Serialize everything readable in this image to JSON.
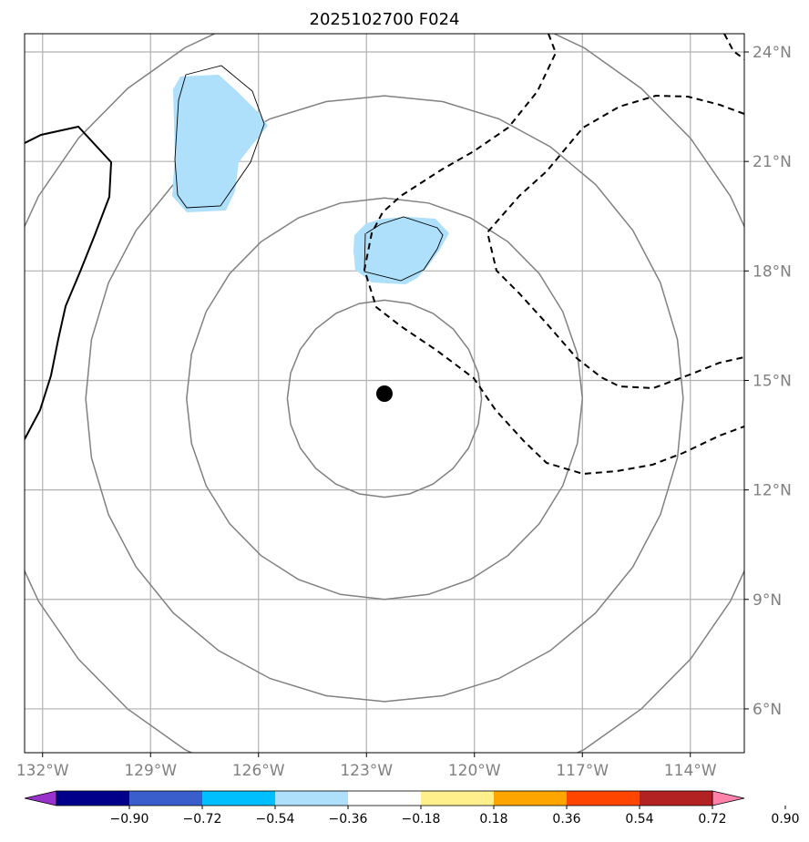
{
  "title": "2025102700 F024",
  "map": {
    "lon_labels": [
      "132°W",
      "129°W",
      "126°W",
      "123°W",
      "120°W",
      "117°W",
      "114°W"
    ],
    "lat_labels": [
      "24°N",
      "21°N",
      "18°N",
      "15°N",
      "12°N",
      "9°N",
      "6°N"
    ],
    "lon_values": [
      -132,
      -129,
      -126,
      -123,
      -120,
      -117,
      -114
    ],
    "lat_values": [
      24,
      21,
      18,
      15,
      12,
      9,
      6
    ],
    "extent": {
      "lon_min": -132.5,
      "lon_max": -112.5,
      "lat_min": 4.8,
      "lat_max": 24.5
    },
    "center_marker": {
      "lon": -122.5,
      "lat": 14.5
    },
    "ring_radii_deg": [
      2.7,
      5.5,
      8.3,
      11.1
    ],
    "colors": {
      "grid": "#b0b0b0",
      "rings": "#808080",
      "shading": "#aee0fb",
      "contour": "#000000"
    }
  },
  "colorbar": {
    "tick_labels": [
      "−0.90",
      "−0.72",
      "−0.54",
      "−0.36",
      "−0.18",
      "0.18",
      "0.36",
      "0.54",
      "0.72",
      "0.90"
    ],
    "colors": [
      "#9932cc",
      "#00008b",
      "#3a5fcd",
      "#00bfff",
      "#aee0fb",
      "#ffffff",
      "#fff08c",
      "#ffa500",
      "#ff4500",
      "#b22222",
      "#ff82ab"
    ],
    "under_color": "#9932cc",
    "over_color": "#ff82ab"
  }
}
